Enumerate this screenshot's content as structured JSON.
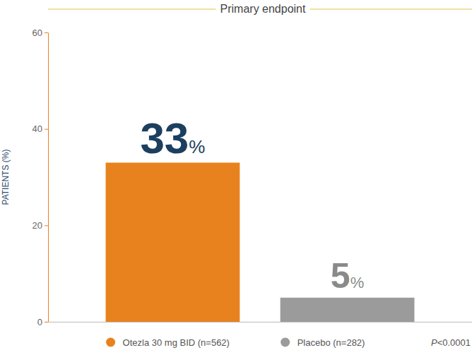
{
  "chart_data": {
    "type": "bar",
    "title": "Primary endpoint",
    "y_label": "PATIENTS (%)",
    "categories": [
      "Otezla 30 mg BID (n=562)",
      "Placebo (n=282)"
    ],
    "values": [
      33,
      5
    ],
    "value_labels": [
      "33%",
      "5%"
    ],
    "colors": [
      "#e8821e",
      "#9b9b9b"
    ],
    "ylim": [
      0,
      60
    ],
    "yticks": [
      0,
      20,
      40,
      60
    ],
    "grid": false,
    "data_labels": true,
    "legend": "bottom",
    "tick_labels": "y",
    "annotation": "P<0.0001"
  }
}
